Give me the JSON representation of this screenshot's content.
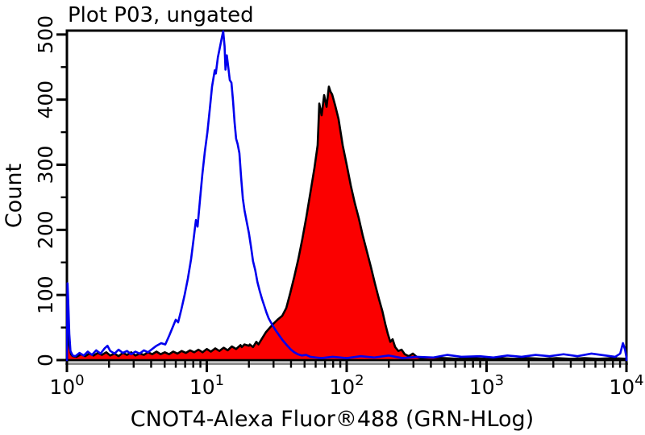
{
  "page": {
    "background": "#FFFFFF"
  },
  "chart_data": {
    "type": "area",
    "title": "Plot P03, ungated",
    "xlabel": "CNOT4-Alexa Fluor®488 (GRN-HLog)",
    "ylabel": "Count",
    "x_scale": "log",
    "xlim": [
      1,
      10000
    ],
    "ylim": [
      0,
      506
    ],
    "grid": false,
    "legend": "none",
    "x_ticks": {
      "base": "10",
      "exponents": [
        "0",
        "1",
        "2",
        "3",
        "4"
      ]
    },
    "y_ticks": {
      "labels": [
        "0",
        "100",
        "200",
        "300",
        "400",
        "500"
      ],
      "values": [
        0,
        100,
        200,
        300,
        400,
        500
      ],
      "minor_interval": 50
    },
    "colors": {
      "background": "#FFFFFF",
      "axis": "#000000",
      "axis_shadow": "#8C8C8C",
      "blue_series": "#0000EE",
      "red_fill": "#FB0000",
      "red_outline": "#000000"
    },
    "series": [
      {
        "name": "red-filled-histogram",
        "style": "filled",
        "color": "#FB0000",
        "outline": "#000000",
        "points": [
          [
            1.0,
            2
          ],
          [
            1.01,
            68
          ],
          [
            1.02,
            52
          ],
          [
            1.04,
            22
          ],
          [
            1.07,
            9
          ],
          [
            1.1,
            6
          ],
          [
            1.17,
            5
          ],
          [
            1.26,
            9
          ],
          [
            1.35,
            6
          ],
          [
            1.45,
            10
          ],
          [
            1.55,
            7
          ],
          [
            1.66,
            11
          ],
          [
            1.78,
            8
          ],
          [
            1.91,
            12
          ],
          [
            2.04,
            7
          ],
          [
            2.19,
            10
          ],
          [
            2.34,
            6
          ],
          [
            2.51,
            11
          ],
          [
            2.69,
            8
          ],
          [
            2.88,
            12
          ],
          [
            3.09,
            7
          ],
          [
            3.31,
            10
          ],
          [
            3.55,
            8
          ],
          [
            3.8,
            12
          ],
          [
            4.07,
            9
          ],
          [
            4.37,
            13
          ],
          [
            4.68,
            9
          ],
          [
            5.01,
            12
          ],
          [
            5.37,
            9
          ],
          [
            5.75,
            13
          ],
          [
            6.17,
            10
          ],
          [
            6.61,
            14
          ],
          [
            7.08,
            11
          ],
          [
            7.59,
            15
          ],
          [
            8.13,
            12
          ],
          [
            8.71,
            16
          ],
          [
            9.33,
            12
          ],
          [
            10.0,
            17
          ],
          [
            10.7,
            13
          ],
          [
            11.5,
            18
          ],
          [
            12.3,
            14
          ],
          [
            13.2,
            19
          ],
          [
            14.1,
            15
          ],
          [
            15.1,
            21
          ],
          [
            16.2,
            17
          ],
          [
            17.4,
            23
          ],
          [
            17.8,
            20
          ],
          [
            18.6,
            24
          ],
          [
            20.0,
            22
          ],
          [
            20.3,
            24
          ],
          [
            21.4,
            20
          ],
          [
            22.6,
            28
          ],
          [
            23.4,
            24
          ],
          [
            24.8,
            33
          ],
          [
            26.5,
            43
          ],
          [
            28.3,
            50
          ],
          [
            30.3,
            57
          ],
          [
            32.4,
            63
          ],
          [
            34.6,
            68
          ],
          [
            37.0,
            80
          ],
          [
            39.5,
            103
          ],
          [
            42.2,
            128
          ],
          [
            45.1,
            155
          ],
          [
            48.2,
            186
          ],
          [
            51.5,
            220
          ],
          [
            55.1,
            258
          ],
          [
            58.8,
            295
          ],
          [
            62.0,
            330
          ],
          [
            62.8,
            360
          ],
          [
            63.7,
            394
          ],
          [
            66.2,
            376
          ],
          [
            69.0,
            407
          ],
          [
            71.8,
            389
          ],
          [
            74.6,
            420
          ],
          [
            76.7,
            412
          ],
          [
            78.7,
            408
          ],
          [
            83.0,
            390
          ],
          [
            87.5,
            370
          ],
          [
            93.6,
            330
          ],
          [
            100,
            300
          ],
          [
            107,
            268
          ],
          [
            114,
            242
          ],
          [
            122,
            218
          ],
          [
            130,
            192
          ],
          [
            139,
            168
          ],
          [
            149,
            143
          ],
          [
            159,
            118
          ],
          [
            170,
            94
          ],
          [
            180,
            75
          ],
          [
            189,
            55
          ],
          [
            197,
            40
          ],
          [
            205,
            28
          ],
          [
            213,
            32
          ],
          [
            222,
            20
          ],
          [
            234,
            14
          ],
          [
            247,
            16
          ],
          [
            260,
            9
          ],
          [
            278,
            6
          ],
          [
            297,
            10
          ],
          [
            317,
            5
          ],
          [
            339,
            3
          ],
          [
            398,
            4
          ],
          [
            501,
            3
          ],
          [
            631,
            2
          ],
          [
            794,
            3
          ],
          [
            1000,
            2
          ],
          [
            1260,
            3
          ],
          [
            1580,
            2
          ],
          [
            2000,
            3
          ],
          [
            2510,
            2
          ],
          [
            3160,
            3
          ],
          [
            3980,
            2
          ],
          [
            5010,
            3
          ],
          [
            6310,
            2
          ],
          [
            7940,
            3
          ],
          [
            10000,
            2
          ]
        ]
      },
      {
        "name": "blue-open-histogram",
        "style": "open",
        "color": "#0000EE",
        "points": [
          [
            1.0,
            2
          ],
          [
            1.01,
            118
          ],
          [
            1.02,
            95
          ],
          [
            1.04,
            40
          ],
          [
            1.06,
            14
          ],
          [
            1.1,
            7
          ],
          [
            1.15,
            6
          ],
          [
            1.23,
            11
          ],
          [
            1.32,
            7
          ],
          [
            1.41,
            13
          ],
          [
            1.51,
            8
          ],
          [
            1.62,
            15
          ],
          [
            1.74,
            10
          ],
          [
            1.86,
            18
          ],
          [
            1.95,
            22
          ],
          [
            2.04,
            14
          ],
          [
            2.19,
            10
          ],
          [
            2.34,
            16
          ],
          [
            2.51,
            11
          ],
          [
            2.69,
            14
          ],
          [
            2.88,
            9
          ],
          [
            3.09,
            13
          ],
          [
            3.31,
            10
          ],
          [
            3.55,
            15
          ],
          [
            3.8,
            12
          ],
          [
            4.07,
            17
          ],
          [
            4.37,
            22
          ],
          [
            4.72,
            26
          ],
          [
            5.05,
            24
          ],
          [
            5.4,
            38
          ],
          [
            5.69,
            50
          ],
          [
            6.0,
            62
          ],
          [
            6.24,
            58
          ],
          [
            6.58,
            78
          ],
          [
            6.94,
            100
          ],
          [
            7.32,
            125
          ],
          [
            7.72,
            155
          ],
          [
            8.04,
            185
          ],
          [
            8.36,
            215
          ],
          [
            8.59,
            205
          ],
          [
            8.93,
            245
          ],
          [
            9.29,
            285
          ],
          [
            9.68,
            320
          ],
          [
            10.1,
            350
          ],
          [
            10.5,
            385
          ],
          [
            10.9,
            420
          ],
          [
            11.4,
            445
          ],
          [
            11.6,
            440
          ],
          [
            12.0,
            465
          ],
          [
            12.4,
            480
          ],
          [
            12.8,
            495
          ],
          [
            13.1,
            505
          ],
          [
            13.4,
            482
          ],
          [
            13.6,
            446
          ],
          [
            13.9,
            468
          ],
          [
            14.2,
            452
          ],
          [
            14.6,
            430
          ],
          [
            15.0,
            426
          ],
          [
            15.4,
            398
          ],
          [
            15.8,
            365
          ],
          [
            16.2,
            340
          ],
          [
            16.6,
            332
          ],
          [
            17.1,
            318
          ],
          [
            17.6,
            280
          ],
          [
            18.1,
            248
          ],
          [
            18.6,
            230
          ],
          [
            19.3,
            212
          ],
          [
            20.0,
            195
          ],
          [
            20.7,
            174
          ],
          [
            21.4,
            152
          ],
          [
            22.2,
            138
          ],
          [
            23.0,
            120
          ],
          [
            23.9,
            106
          ],
          [
            24.8,
            94
          ],
          [
            25.7,
            84
          ],
          [
            26.7,
            73
          ],
          [
            27.7,
            64
          ],
          [
            28.7,
            58
          ],
          [
            29.8,
            52
          ],
          [
            31.0,
            46
          ],
          [
            32.2,
            41
          ],
          [
            33.4,
            36
          ],
          [
            34.7,
            31
          ],
          [
            36.3,
            26
          ],
          [
            38.0,
            21
          ],
          [
            40.0,
            16
          ],
          [
            42.2,
            12
          ],
          [
            44.7,
            9
          ],
          [
            47.9,
            7
          ],
          [
            51.3,
            8
          ],
          [
            55.0,
            5
          ],
          [
            60.0,
            4
          ],
          [
            66.0,
            3
          ],
          [
            79.4,
            5
          ],
          [
            100,
            3
          ],
          [
            126,
            6
          ],
          [
            158,
            4
          ],
          [
            200,
            7
          ],
          [
            251,
            3
          ],
          [
            316,
            5
          ],
          [
            417,
            4
          ],
          [
            525,
            8
          ],
          [
            661,
            5
          ],
          [
            891,
            6
          ],
          [
            1120,
            4
          ],
          [
            1410,
            7
          ],
          [
            1780,
            5
          ],
          [
            2240,
            8
          ],
          [
            2820,
            6
          ],
          [
            3550,
            9
          ],
          [
            4470,
            6
          ],
          [
            5620,
            10
          ],
          [
            7080,
            7
          ],
          [
            8320,
            5
          ],
          [
            9020,
            10
          ],
          [
            9440,
            26
          ],
          [
            9770,
            16
          ],
          [
            10000,
            4
          ]
        ]
      }
    ]
  }
}
